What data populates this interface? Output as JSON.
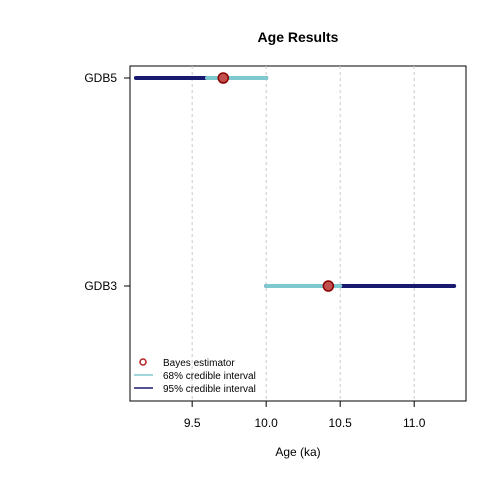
{
  "chart_data": {
    "type": "interval",
    "title": "Age Results",
    "xlabel": "Age (ka)",
    "ylabel": "",
    "xlim": [
      9.08,
      11.35
    ],
    "x_ticks": [
      9.5,
      10.0,
      10.5,
      11.0
    ],
    "x_tick_labels": [
      "9.5",
      "10.0",
      "10.5",
      "11.0"
    ],
    "grid": "vertical dashed at x ticks",
    "categories": [
      "GDB5",
      "GDB3"
    ],
    "samples": [
      {
        "name": "GDB5",
        "bayes_estimator": 9.71,
        "ci68": [
          9.6,
          10.0
        ],
        "ci95": [
          9.12,
          10.0
        ]
      },
      {
        "name": "GDB3",
        "bayes_estimator": 10.42,
        "ci68": [
          10.0,
          10.5
        ],
        "ci95": [
          10.0,
          11.27
        ]
      }
    ],
    "legend": {
      "position": "bottom-left",
      "items": [
        {
          "label": "Bayes estimator",
          "kind": "point",
          "color": "#b22222"
        },
        {
          "label": "68% credible interval",
          "kind": "line",
          "color": "#7ec8d0"
        },
        {
          "label": "95% credible interval",
          "kind": "line",
          "color": "#191970"
        }
      ]
    },
    "colors": {
      "ci68": "#7ec8d0",
      "ci95": "#191970",
      "point_fill": "#c0504d",
      "point_stroke": "#8b0000",
      "grid": "#c8c8c8"
    }
  }
}
